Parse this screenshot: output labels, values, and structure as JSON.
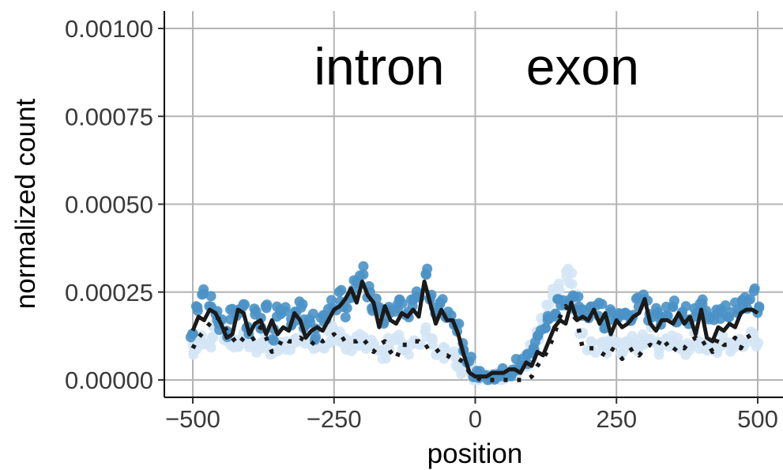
{
  "chart_data": {
    "type": "scatter",
    "title": "",
    "xlabel": "position",
    "ylabel": "normalized count",
    "xlim": [
      -520,
      520
    ],
    "ylim": [
      -5e-05,
      0.00105
    ],
    "x_ticks": [
      -500,
      -250,
      0,
      250,
      500
    ],
    "x_tick_labels": [
      "−500",
      "−250",
      "0",
      "250",
      "500"
    ],
    "y_ticks": [
      0,
      0.00025,
      0.0005,
      0.00075,
      0.001
    ],
    "y_tick_labels": [
      "0.00000",
      "0.00025",
      "0.00050",
      "0.00075",
      "0.00100"
    ],
    "grid": true,
    "annotations": [
      {
        "text": "intron",
        "x": -170,
        "y": 0.00089
      },
      {
        "text": "exon",
        "x": 190,
        "y": 0.00089
      }
    ],
    "colors": {
      "dark_points": "#4a92c6",
      "light_points": "#d4e6f5",
      "lines": "#1a1a1a",
      "grid": "#b4b4b4"
    },
    "series": [
      {
        "style": "points-dark",
        "x": [
          -500,
          -490,
          -480,
          -470,
          -460,
          -450,
          -440,
          -430,
          -420,
          -410,
          -400,
          -390,
          -380,
          -370,
          -360,
          -350,
          -340,
          -330,
          -320,
          -310,
          -300,
          -290,
          -280,
          -270,
          -260,
          -250,
          -240,
          -230,
          -220,
          -210,
          -200,
          -190,
          -180,
          -170,
          -160,
          -150,
          -140,
          -130,
          -120,
          -110,
          -100,
          -90,
          -80,
          -70,
          -60,
          -50,
          -40,
          -30,
          -20,
          -10,
          0,
          10,
          20,
          30,
          40,
          50,
          60,
          70,
          80,
          90,
          100,
          110,
          120,
          130,
          140,
          150,
          160,
          170,
          180,
          190,
          200,
          210,
          220,
          230,
          240,
          250,
          260,
          270,
          280,
          290,
          300,
          310,
          320,
          330,
          340,
          350,
          360,
          370,
          380,
          390,
          400,
          410,
          420,
          430,
          440,
          450,
          460,
          470,
          480,
          490,
          500
        ],
        "y": [
          0.00014,
          0.00021,
          0.00025,
          0.00022,
          0.00019,
          0.00016,
          0.00014,
          0.00019,
          0.0002,
          0.00022,
          0.00015,
          0.00019,
          0.00016,
          0.00021,
          0.00013,
          0.0002,
          0.00019,
          0.00017,
          0.00018,
          0.00021,
          0.00016,
          0.00018,
          0.00013,
          0.00017,
          0.00019,
          0.00021,
          0.00024,
          0.00019,
          0.00024,
          0.00027,
          0.00031,
          0.00025,
          0.0002,
          0.00022,
          0.00018,
          0.00019,
          0.0002,
          0.00021,
          0.00018,
          0.00022,
          0.00024,
          0.0003,
          0.00024,
          0.00019,
          0.00021,
          0.00018,
          0.00017,
          0.00014,
          9e-05,
          5e-05,
          1e-05,
          1e-05,
          1e-05,
          1e-05,
          2e-05,
          3e-05,
          3e-05,
          4e-05,
          4e-05,
          6e-05,
          8e-05,
          0.00011,
          0.00014,
          0.00017,
          0.00019,
          0.00021,
          0.00023,
          0.00024,
          0.00022,
          0.0002,
          0.00019,
          0.00021,
          0.0002,
          0.00016,
          0.00019,
          0.00018,
          0.0002,
          0.00019,
          0.00018,
          0.00022,
          0.00023,
          0.00018,
          0.0002,
          0.00017,
          0.00019,
          0.00021,
          0.00018,
          0.0002,
          0.00017,
          0.00019,
          0.00022,
          0.00018,
          0.00016,
          0.00019,
          0.0002,
          0.00018,
          0.00021,
          0.00023,
          0.00022,
          0.00024,
          0.0002
        ]
      },
      {
        "style": "points-light",
        "x": [
          -500,
          -490,
          -480,
          -470,
          -460,
          -450,
          -440,
          -430,
          -420,
          -410,
          -400,
          -390,
          -380,
          -370,
          -360,
          -350,
          -340,
          -330,
          -320,
          -310,
          -300,
          -290,
          -280,
          -270,
          -260,
          -250,
          -240,
          -230,
          -220,
          -210,
          -200,
          -190,
          -180,
          -170,
          -160,
          -150,
          -140,
          -130,
          -120,
          -110,
          -100,
          -90,
          -80,
          -70,
          -60,
          -50,
          -40,
          -30,
          -20,
          -10,
          0,
          10,
          20,
          30,
          40,
          50,
          60,
          70,
          80,
          90,
          100,
          110,
          120,
          130,
          140,
          150,
          160,
          170,
          180,
          190,
          200,
          210,
          220,
          230,
          240,
          250,
          260,
          270,
          280,
          290,
          300,
          310,
          320,
          330,
          340,
          350,
          360,
          370,
          380,
          390,
          400,
          410,
          420,
          430,
          440,
          450,
          460,
          470,
          480,
          490,
          500
        ],
        "y": [
          8e-05,
          0.0001,
          0.00012,
          0.00011,
          0.00014,
          0.00016,
          0.00012,
          0.0001,
          0.0001,
          0.00013,
          0.00011,
          9e-05,
          0.0001,
          0.00012,
          8e-05,
          0.0001,
          0.00011,
          9e-05,
          0.0001,
          0.00012,
          0.0001,
          9e-05,
          0.00011,
          0.0001,
          0.00012,
          0.00014,
          0.00012,
          0.0001,
          0.0001,
          0.00011,
          0.00012,
          0.0001,
          0.00011,
          0.0001,
          8e-05,
          0.0001,
          0.00012,
          0.0001,
          9e-05,
          0.00011,
          0.0001,
          0.00013,
          0.0001,
          9e-05,
          8e-05,
          9e-05,
          7e-05,
          5e-05,
          3e-05,
          2e-05,
          0,
          0,
          0,
          0,
          1e-05,
          1e-05,
          1e-05,
          2e-05,
          3e-05,
          5e-05,
          9e-05,
          0.00013,
          0.00017,
          0.0002,
          0.00024,
          0.00027,
          0.00031,
          0.00029,
          0.00024,
          0.00015,
          0.0001,
          9e-05,
          0.0001,
          9e-05,
          0.00011,
          0.0001,
          9e-05,
          0.0001,
          0.00011,
          0.0001,
          0.00012,
          0.00013,
          0.0001,
          9e-05,
          0.0001,
          0.00011,
          0.0001,
          9e-05,
          0.0001,
          0.00012,
          0.0001,
          9e-05,
          0.0001,
          9e-05,
          0.00011,
          0.0001,
          9e-05,
          0.0001,
          0.00011,
          0.00012,
          0.0001
        ]
      },
      {
        "style": "line-solid",
        "x": [
          -500,
          -490,
          -480,
          -470,
          -460,
          -450,
          -440,
          -430,
          -420,
          -410,
          -400,
          -390,
          -380,
          -370,
          -360,
          -350,
          -340,
          -330,
          -320,
          -310,
          -300,
          -290,
          -280,
          -270,
          -260,
          -250,
          -240,
          -230,
          -220,
          -210,
          -200,
          -190,
          -180,
          -170,
          -160,
          -150,
          -140,
          -130,
          -120,
          -110,
          -100,
          -90,
          -80,
          -70,
          -60,
          -50,
          -40,
          -30,
          -20,
          -10,
          0,
          10,
          20,
          30,
          40,
          50,
          60,
          70,
          80,
          90,
          100,
          110,
          120,
          130,
          140,
          150,
          160,
          170,
          180,
          190,
          200,
          210,
          220,
          230,
          240,
          250,
          260,
          270,
          280,
          290,
          300,
          310,
          320,
          330,
          340,
          350,
          360,
          370,
          380,
          390,
          400,
          410,
          420,
          430,
          440,
          450,
          460,
          470,
          480,
          490,
          500
        ],
        "y": [
          0.00014,
          0.00018,
          0.00017,
          0.0002,
          0.00019,
          0.00016,
          0.00012,
          0.00013,
          0.0002,
          0.00019,
          0.00013,
          0.00016,
          0.00017,
          0.00013,
          0.00017,
          0.00013,
          0.00015,
          0.00014,
          0.00019,
          0.00017,
          0.00012,
          0.00014,
          0.00015,
          0.00014,
          0.00017,
          0.0002,
          0.00021,
          0.00023,
          0.00026,
          0.00022,
          0.00028,
          0.00024,
          0.00022,
          0.00015,
          0.00021,
          0.00017,
          0.00016,
          0.00019,
          0.00018,
          0.0002,
          0.00018,
          0.00028,
          0.00022,
          0.00016,
          0.0002,
          0.00017,
          0.00017,
          0.00013,
          7e-05,
          2e-05,
          1e-05,
          1e-05,
          1e-05,
          2e-05,
          2e-05,
          2e-05,
          3e-05,
          3e-05,
          2e-05,
          5e-05,
          4e-05,
          8e-05,
          7e-05,
          0.00011,
          0.00015,
          0.00017,
          0.00016,
          0.00022,
          0.00017,
          0.00018,
          0.00017,
          0.0002,
          0.00016,
          0.00019,
          0.00013,
          0.00017,
          0.00015,
          0.00016,
          0.00018,
          0.00019,
          0.00023,
          0.00016,
          0.00014,
          0.00017,
          0.00017,
          0.00016,
          0.00019,
          0.00016,
          0.00018,
          0.00013,
          0.0002,
          0.00012,
          0.00011,
          0.00015,
          0.00014,
          0.00016,
          0.00015,
          0.00019,
          0.0002,
          0.0002,
          0.00019
        ]
      },
      {
        "style": "line-dotted",
        "x": [
          -500,
          -490,
          -480,
          -470,
          -460,
          -450,
          -440,
          -430,
          -420,
          -410,
          -400,
          -390,
          -380,
          -370,
          -360,
          -350,
          -340,
          -330,
          -320,
          -310,
          -300,
          -290,
          -280,
          -270,
          -260,
          -250,
          -240,
          -230,
          -220,
          -210,
          -200,
          -190,
          -180,
          -170,
          -160,
          -150,
          -140,
          -130,
          -120,
          -110,
          -100,
          -90,
          -80,
          -70,
          -60,
          -50,
          -40,
          -30,
          -20,
          -10,
          0,
          10,
          20,
          30,
          40,
          50,
          60,
          70,
          80,
          90,
          100,
          110,
          120,
          130,
          140,
          150,
          160,
          170,
          180,
          190,
          200,
          210,
          220,
          230,
          240,
          250,
          260,
          270,
          280,
          290,
          300,
          310,
          320,
          330,
          340,
          350,
          360,
          370,
          380,
          390,
          400,
          410,
          420,
          430,
          440,
          450,
          460,
          470,
          480,
          490,
          500
        ],
        "y": [
          9e-05,
          0.00012,
          0.00014,
          0.00016,
          0.00018,
          0.00017,
          0.00014,
          0.00012,
          0.0001,
          0.00012,
          0.00011,
          0.00012,
          0.00015,
          0.00012,
          8e-05,
          9e-05,
          0.00012,
          0.00011,
          0.00011,
          0.00012,
          0.00011,
          0.0001,
          0.00012,
          0.00011,
          0.00012,
          0.00013,
          0.00011,
          0.00012,
          0.00011,
          0.00011,
          0.00012,
          0.0001,
          8e-05,
          0.0001,
          0.00011,
          8e-05,
          6e-05,
          0.0001,
          0.0001,
          0.00011,
          0.00011,
          9e-05,
          0.0001,
          9e-05,
          7e-05,
          7e-05,
          6e-05,
          6e-05,
          5e-05,
          2e-05,
          1e-05,
          0,
          0,
          0,
          0,
          0,
          0,
          0,
          0,
          0,
          1e-05,
          4e-05,
          6e-05,
          9e-05,
          0.00013,
          0.00018,
          0.00021,
          0.00019,
          0.00017,
          9e-05,
          9e-05,
          9e-05,
          8e-05,
          7e-05,
          9e-05,
          8e-05,
          6e-05,
          8e-05,
          9e-05,
          7e-05,
          9e-05,
          0.0001,
          9e-05,
          0.00012,
          0.0001,
          8e-05,
          0.0001,
          9e-05,
          0.00011,
          0.00012,
          0.0001,
          0.00011,
          8e-05,
          0.00012,
          0.0001,
          0.0001,
          0.00012,
          9e-05,
          0.00012,
          0.00013,
          0.00012
        ]
      }
    ]
  }
}
